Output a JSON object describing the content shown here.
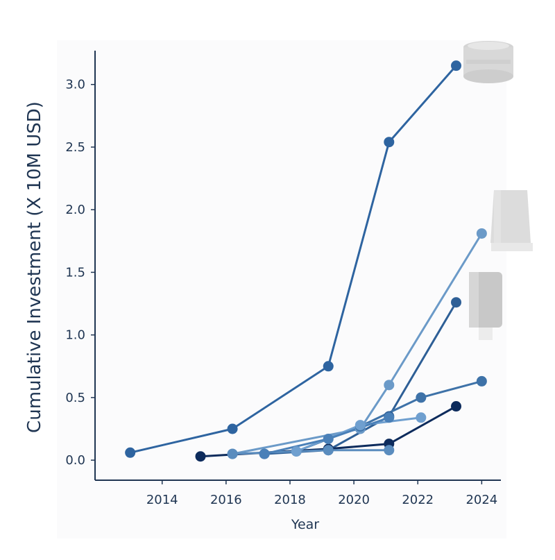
{
  "chart_data": {
    "type": "line",
    "title": "",
    "xlabel": "Year",
    "ylabel": "Cumulative Investment (X 10M USD)",
    "xlim": [
      2011.9,
      2024.6
    ],
    "ylim": [
      -0.16,
      3.27
    ],
    "xticks": [
      2014,
      2016,
      2018,
      2020,
      2022,
      2024
    ],
    "yticks": [
      0.0,
      0.5,
      1.0,
      1.5,
      2.0,
      2.5,
      3.0
    ],
    "xtick_labels": [
      "2014",
      "2016",
      "2018",
      "2020",
      "2022",
      "2024"
    ],
    "ytick_labels": [
      "0.0",
      "0.5",
      "1.0",
      "1.5",
      "2.0",
      "2.5",
      "3.0"
    ],
    "grid": false,
    "series": [
      {
        "color": "#2e64a0",
        "points": [
          [
            2013.0,
            0.06
          ],
          [
            2016.2,
            0.25
          ],
          [
            2019.2,
            0.75
          ],
          [
            2021.1,
            2.54
          ],
          [
            2023.2,
            3.15
          ]
        ]
      },
      {
        "color": "#6b9ac8",
        "points": [
          [
            2016.2,
            0.05
          ],
          [
            2020.2,
            0.25
          ],
          [
            2021.1,
            0.6
          ],
          [
            2024.0,
            1.81
          ]
        ]
      },
      {
        "color": "#2e5f96",
        "points": [
          [
            2017.2,
            0.05
          ],
          [
            2019.2,
            0.08
          ],
          [
            2021.1,
            0.35
          ],
          [
            2023.2,
            1.26
          ]
        ]
      },
      {
        "color": "#3e72a8",
        "points": [
          [
            2018.2,
            0.07
          ],
          [
            2020.2,
            0.27
          ],
          [
            2022.1,
            0.5
          ],
          [
            2024.0,
            0.63
          ]
        ]
      },
      {
        "color": "#0d2b5c",
        "points": [
          [
            2015.2,
            0.03
          ],
          [
            2019.2,
            0.09
          ],
          [
            2021.1,
            0.13
          ],
          [
            2023.2,
            0.43
          ]
        ]
      },
      {
        "color": "#6f9fcf",
        "points": [
          [
            2018.2,
            0.07
          ],
          [
            2020.2,
            0.28
          ],
          [
            2022.1,
            0.34
          ]
        ]
      },
      {
        "color": "#5a8cbe",
        "points": [
          [
            2016.2,
            0.05
          ],
          [
            2019.2,
            0.08
          ],
          [
            2021.1,
            0.08
          ]
        ]
      },
      {
        "color": "#4a80b8",
        "points": [
          [
            2017.2,
            0.05
          ],
          [
            2019.2,
            0.17
          ],
          [
            2021.1,
            0.34
          ]
        ]
      }
    ],
    "annotations": [
      {
        "icon": "puck-device-icon",
        "near": [
          2023.2,
          3.15
        ]
      },
      {
        "icon": "tall-device-icon",
        "near": [
          2024.0,
          1.81
        ]
      },
      {
        "icon": "cylinder-device-icon",
        "near": [
          2023.2,
          1.26
        ]
      }
    ]
  }
}
